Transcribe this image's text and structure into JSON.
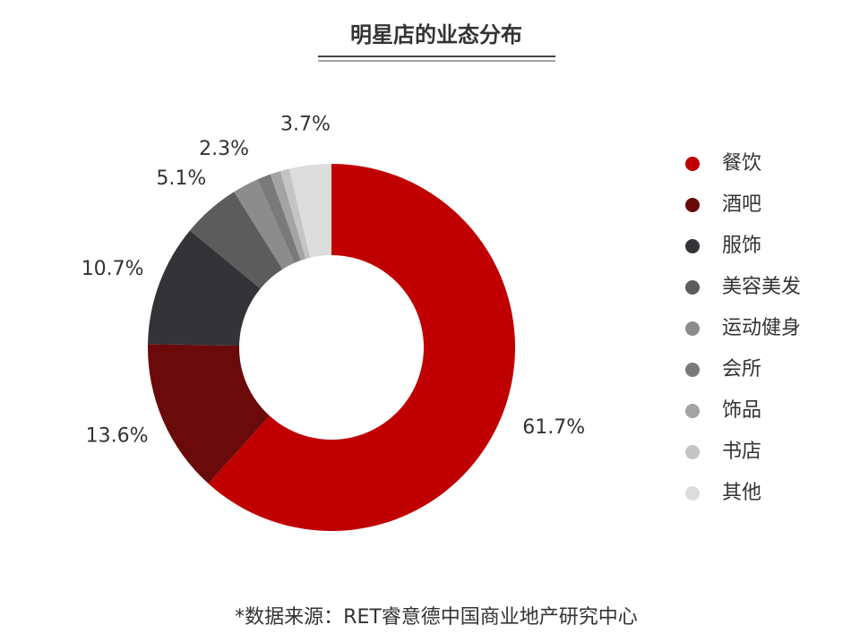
{
  "chart_data": {
    "type": "donut",
    "title": "明星店的业态分布",
    "categories": [
      "餐饮",
      "酒吧",
      "服饰",
      "美容美发",
      "运动健身",
      "会所",
      "饰品",
      "书店",
      "其他"
    ],
    "values": [
      61.7,
      13.6,
      10.7,
      5.1,
      2.3,
      1.2,
      0.9,
      0.8,
      3.7
    ],
    "value_labels": [
      "61.7%",
      "13.6%",
      "10.7%",
      "5.1%",
      "2.3%",
      null,
      null,
      null,
      "3.7%"
    ],
    "colors": [
      "#c00000",
      "#6b0a0a",
      "#333338",
      "#5c5c5c",
      "#8c8c8c",
      "#7a7a7a",
      "#a3a3a3",
      "#c4c4c4",
      "#dcdcdc"
    ],
    "legend": "right",
    "source": "*数据来源：RET睿意德中国商业地产研究中心"
  }
}
